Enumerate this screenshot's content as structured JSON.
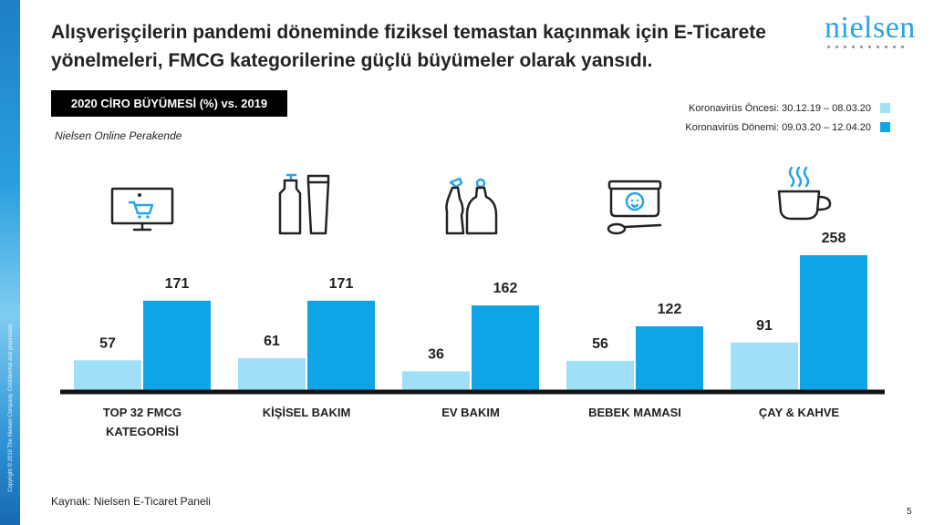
{
  "title": "Alışverişçilerin pandemi döneminde fiziksel temastan kaçınmak için E-Ticarete yönelmeleri, FMCG kategorilerine güçlü büyümeler olarak yansıdı.",
  "logo_text": "nielsen",
  "badge": "2020 CİRO BÜYÜMESİ (%) vs. 2019",
  "subtitle": "Nielsen Online Perakende",
  "source": "Kaynak: Nielsen E-Ticaret Paneli",
  "page_number": "5",
  "side_text": "Copyright © 2019 The Nielsen Company. Confidential and proprietary.",
  "colors": {
    "before": "#9fdff7",
    "during": "#0fa4e6",
    "axis": "#111111",
    "accent": "#2aa3e6"
  },
  "chart_data": {
    "type": "bar",
    "categories": [
      "TOP 32 FMCG KATEGORİSİ",
      "KİŞİSEL BAKIM",
      "EV BAKIM",
      "BEBEK MAMASI",
      "ÇAY & KAHVE"
    ],
    "category_lines": [
      [
        "TOP 32 FMCG",
        "KATEGORİSİ"
      ],
      [
        "KİŞİSEL BAKIM"
      ],
      [
        "EV BAKIM"
      ],
      [
        "BEBEK MAMASI"
      ],
      [
        "ÇAY & KAHVE"
      ]
    ],
    "category_icons": [
      "shopping-cart-monitor-icon",
      "personal-care-bottles-icon",
      "cleaning-bottles-icon",
      "baby-food-jar-icon",
      "coffee-cup-icon"
    ],
    "series": [
      {
        "name": "Koronavirüs Öncesi: 30.12.19 – 08.03.20",
        "values": [
          57,
          61,
          36,
          56,
          91
        ]
      },
      {
        "name": "Koronavirüs Dönemi: 09.03.20 – 12.04.20",
        "values": [
          171,
          171,
          162,
          122,
          258
        ]
      }
    ],
    "ylim": [
      0,
      258
    ],
    "legend_position": "top-right",
    "grid": false
  }
}
